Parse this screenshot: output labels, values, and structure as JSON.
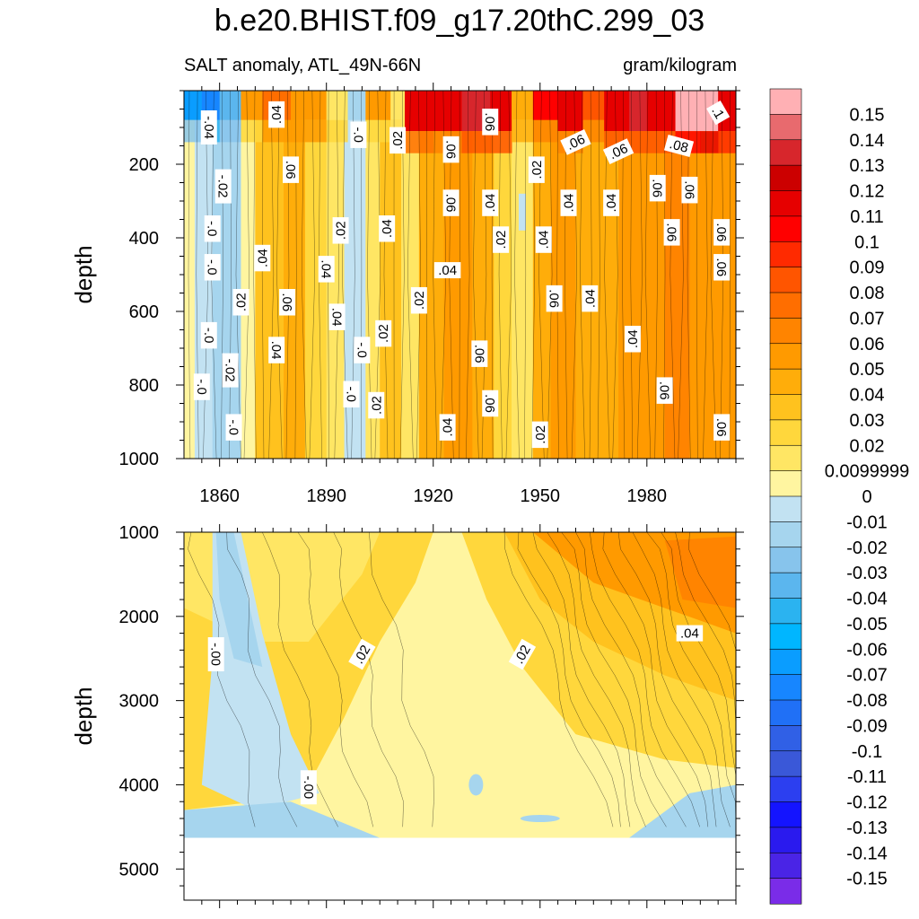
{
  "title": "b.e20.BHIST.f09_g17.20thC.299_03",
  "subtitle_left": "SALT anomaly, ATL_49N-66N",
  "subtitle_right": "gram/kilogram",
  "chart_data": [
    {
      "type": "heatmap",
      "panel": "upper",
      "xlabel": "",
      "ylabel": "depth",
      "xlim": [
        1850,
        2005
      ],
      "ylim": [
        1000,
        0
      ],
      "x_ticks": [
        1860,
        1890,
        1920,
        1950,
        1980
      ],
      "y_ticks": [
        200,
        400,
        600,
        800,
        1000
      ],
      "bands": [
        {
          "x0": 1850,
          "x1": 1853,
          "value": 0.005
        },
        {
          "x0": 1853,
          "x1": 1858,
          "value": -0.005
        },
        {
          "x0": 1858,
          "x1": 1866,
          "value": -0.02
        },
        {
          "x0": 1866,
          "x1": 1870,
          "value": 0.005
        },
        {
          "x0": 1870,
          "x1": 1878,
          "value": 0.035
        },
        {
          "x0": 1878,
          "x1": 1884,
          "value": 0.045
        },
        {
          "x0": 1884,
          "x1": 1890,
          "value": 0.03
        },
        {
          "x0": 1890,
          "x1": 1895,
          "value": 0.015
        },
        {
          "x0": 1895,
          "x1": 1901,
          "value": -0.005
        },
        {
          "x0": 1901,
          "x1": 1905,
          "value": 0.01
        },
        {
          "x0": 1905,
          "x1": 1911,
          "value": 0.035
        },
        {
          "x0": 1911,
          "x1": 1916,
          "value": 0.015
        },
        {
          "x0": 1916,
          "x1": 1923,
          "value": 0.045
        },
        {
          "x0": 1923,
          "x1": 1931,
          "value": 0.055
        },
        {
          "x0": 1931,
          "x1": 1937,
          "value": 0.045
        },
        {
          "x0": 1937,
          "x1": 1942,
          "value": 0.03
        },
        {
          "x0": 1942,
          "x1": 1948,
          "value": 0.015
        },
        {
          "x0": 1948,
          "x1": 1953,
          "value": 0.04
        },
        {
          "x0": 1953,
          "x1": 1960,
          "value": 0.055
        },
        {
          "x0": 1960,
          "x1": 1966,
          "value": 0.045
        },
        {
          "x0": 1966,
          "x1": 1972,
          "value": 0.04
        },
        {
          "x0": 1972,
          "x1": 1978,
          "value": 0.055
        },
        {
          "x0": 1978,
          "x1": 1985,
          "value": 0.06
        },
        {
          "x0": 1985,
          "x1": 1992,
          "value": 0.065
        },
        {
          "x0": 1992,
          "x1": 1999,
          "value": 0.06
        },
        {
          "x0": 1999,
          "x1": 2005,
          "value": 0.05
        }
      ],
      "surface_bands": [
        {
          "x0": 1850,
          "x1": 1855,
          "value": -0.06
        },
        {
          "x0": 1855,
          "x1": 1860,
          "value": -0.08
        },
        {
          "x0": 1860,
          "x1": 1866,
          "value": -0.03
        },
        {
          "x0": 1866,
          "x1": 1872,
          "value": 0.05
        },
        {
          "x0": 1872,
          "x1": 1880,
          "value": 0.07
        },
        {
          "x0": 1880,
          "x1": 1890,
          "value": 0.06
        },
        {
          "x0": 1890,
          "x1": 1896,
          "value": 0.02
        },
        {
          "x0": 1896,
          "x1": 1901,
          "value": -0.02
        },
        {
          "x0": 1901,
          "x1": 1908,
          "value": 0.06
        },
        {
          "x0": 1908,
          "x1": 1912,
          "value": 0.02
        },
        {
          "x0": 1912,
          "x1": 1920,
          "value": 0.11
        },
        {
          "x0": 1920,
          "x1": 1928,
          "value": 0.12
        },
        {
          "x0": 1928,
          "x1": 1936,
          "value": 0.13
        },
        {
          "x0": 1936,
          "x1": 1942,
          "value": 0.11
        },
        {
          "x0": 1942,
          "x1": 1948,
          "value": 0.04
        },
        {
          "x0": 1948,
          "x1": 1955,
          "value": 0.1
        },
        {
          "x0": 1955,
          "x1": 1962,
          "value": 0.12
        },
        {
          "x0": 1962,
          "x1": 1968,
          "value": 0.09
        },
        {
          "x0": 1968,
          "x1": 1975,
          "value": 0.11
        },
        {
          "x0": 1975,
          "x1": 1980,
          "value": 0.13
        },
        {
          "x0": 1980,
          "x1": 1988,
          "value": 0.12
        },
        {
          "x0": 1988,
          "x1": 1995,
          "value": 0.15
        },
        {
          "x0": 1995,
          "x1": 2000,
          "value": 0.16
        },
        {
          "x0": 2000,
          "x1": 2005,
          "value": 0.12
        }
      ],
      "contour_labels": [
        {
          "text": "-.04",
          "x": 1857,
          "y": 100,
          "rot": 90
        },
        {
          "text": ".04",
          "x": 1876,
          "y": 65,
          "rot": -90
        },
        {
          "text": "-.0",
          "x": 1899,
          "y": 120,
          "rot": 90
        },
        {
          "text": ".02",
          "x": 1910,
          "y": 135,
          "rot": -90
        },
        {
          "text": ".06",
          "x": 1936,
          "y": 85,
          "rot": 90
        },
        {
          "text": ".06",
          "x": 1925,
          "y": 160,
          "rot": 90
        },
        {
          "text": ".06",
          "x": 1960,
          "y": 140,
          "rot": -25
        },
        {
          "text": ".06",
          "x": 1972,
          "y": 165,
          "rot": -25
        },
        {
          "text": ".08",
          "x": 1989,
          "y": 150,
          "rot": 15
        },
        {
          "text": ".1",
          "x": 2000,
          "y": 60,
          "rot": 60
        },
        {
          "text": ".06",
          "x": 1880,
          "y": 215,
          "rot": 90
        },
        {
          "text": "-.02",
          "x": 1861,
          "y": 260,
          "rot": 90
        },
        {
          "text": ".02",
          "x": 1949,
          "y": 215,
          "rot": -90
        },
        {
          "text": ".06",
          "x": 1925,
          "y": 305,
          "rot": 90
        },
        {
          "text": ".04",
          "x": 1936,
          "y": 305,
          "rot": -90
        },
        {
          "text": ".04",
          "x": 1958,
          "y": 305,
          "rot": -90
        },
        {
          "text": ".04",
          "x": 1970,
          "y": 305,
          "rot": -90
        },
        {
          "text": ".06",
          "x": 1983,
          "y": 265,
          "rot": 90
        },
        {
          "text": ".06",
          "x": 1992,
          "y": 270,
          "rot": 90
        },
        {
          "text": "-.0",
          "x": 1858,
          "y": 375,
          "rot": 90
        },
        {
          "text": ".02",
          "x": 1894,
          "y": 380,
          "rot": -90
        },
        {
          "text": ".04",
          "x": 1907,
          "y": 375,
          "rot": -90
        },
        {
          "text": ".02",
          "x": 1939,
          "y": 405,
          "rot": -90
        },
        {
          "text": ".04",
          "x": 1951,
          "y": 405,
          "rot": -90
        },
        {
          "text": ".06",
          "x": 1987,
          "y": 385,
          "rot": 90
        },
        {
          "text": ".06",
          "x": 2001,
          "y": 385,
          "rot": 90
        },
        {
          "text": ".04",
          "x": 1872,
          "y": 455,
          "rot": -90
        },
        {
          "text": "-.0",
          "x": 1858,
          "y": 480,
          "rot": 90
        },
        {
          "text": ".04",
          "x": 1890,
          "y": 485,
          "rot": 90
        },
        {
          "text": ".04",
          "x": 1924,
          "y": 488,
          "rot": 0
        },
        {
          "text": ".06",
          "x": 2001,
          "y": 480,
          "rot": 90
        },
        {
          "text": ".02",
          "x": 1866,
          "y": 575,
          "rot": -90
        },
        {
          "text": ".06",
          "x": 1879,
          "y": 575,
          "rot": 90
        },
        {
          "text": ".02",
          "x": 1916,
          "y": 570,
          "rot": -90
        },
        {
          "text": ".06",
          "x": 1954,
          "y": 565,
          "rot": 90
        },
        {
          "text": ".04",
          "x": 1964,
          "y": 565,
          "rot": -90
        },
        {
          "text": ".04",
          "x": 1893,
          "y": 615,
          "rot": 90
        },
        {
          "text": ".02",
          "x": 1906,
          "y": 660,
          "rot": -90
        },
        {
          "text": "-.0",
          "x": 1857,
          "y": 665,
          "rot": 90
        },
        {
          "text": ".04",
          "x": 1876,
          "y": 705,
          "rot": 90
        },
        {
          "text": "-.0",
          "x": 1900,
          "y": 705,
          "rot": 90
        },
        {
          "text": ".06",
          "x": 1933,
          "y": 715,
          "rot": 90
        },
        {
          "text": ".04",
          "x": 1976,
          "y": 675,
          "rot": -90
        },
        {
          "text": "-.02",
          "x": 1863,
          "y": 760,
          "rot": 90
        },
        {
          "text": "-.0",
          "x": 1855,
          "y": 805,
          "rot": 90
        },
        {
          "text": "-.0",
          "x": 1897,
          "y": 825,
          "rot": 90
        },
        {
          "text": ".06",
          "x": 1985,
          "y": 815,
          "rot": 90
        },
        {
          "text": ".02",
          "x": 1904,
          "y": 855,
          "rot": -90
        },
        {
          "text": ".06",
          "x": 1936,
          "y": 850,
          "rot": 90
        },
        {
          "text": "-.0",
          "x": 1864,
          "y": 915,
          "rot": 90
        },
        {
          "text": ".04",
          "x": 1924,
          "y": 915,
          "rot": -90
        },
        {
          "text": ".02",
          "x": 1950,
          "y": 935,
          "rot": -90
        },
        {
          "text": ".06",
          "x": 2001,
          "y": 915,
          "rot": 90
        }
      ]
    },
    {
      "type": "heatmap",
      "panel": "lower",
      "xlabel": "",
      "ylabel": "depth",
      "xlim": [
        1850,
        2005
      ],
      "ylim": [
        5370,
        1000
      ],
      "x_ticks": [
        1860,
        1890,
        1920,
        1950,
        1980
      ],
      "y_ticks": [
        1000,
        2000,
        3000,
        4000,
        5000
      ],
      "data_bottom_depth": 4630,
      "regions": [
        {
          "name": "warm-right",
          "value": 0.05
        },
        {
          "name": "mid-right",
          "value": 0.035
        },
        {
          "name": "band-left",
          "value": 0.02
        },
        {
          "name": "cool-core",
          "value": -0.02
        },
        {
          "name": "cool-plume",
          "value": -0.005
        },
        {
          "name": "deep-pale",
          "value": 0.005
        },
        {
          "name": "bottom-cool",
          "value": -0.01
        }
      ],
      "contour_labels": [
        {
          "text": "-.00",
          "x": 1859,
          "y": 2450,
          "rot": 90
        },
        {
          "text": ".02",
          "x": 1900,
          "y": 2450,
          "rot": -60
        },
        {
          "text": ".02",
          "x": 1945,
          "y": 2450,
          "rot": -60
        },
        {
          "text": ".04",
          "x": 1992,
          "y": 2200,
          "rot": 0
        },
        {
          "text": "-.00",
          "x": 1885,
          "y": 4030,
          "rot": 90
        }
      ]
    }
  ],
  "colorbar": {
    "labels": [
      "0.15",
      "0.14",
      "0.13",
      "0.12",
      "0.11",
      "0.1",
      "0.09",
      "0.08",
      "0.07",
      "0.06",
      "0.05",
      "0.04",
      "0.03",
      "0.02",
      "0.0099999",
      "0",
      "-0.01",
      "-0.02",
      "-0.03",
      "-0.04",
      "-0.05",
      "-0.06",
      "-0.07",
      "-0.08",
      "-0.09",
      "-0.1",
      "-0.11",
      "-0.12",
      "-0.13",
      "-0.14",
      "-0.15"
    ],
    "colors": [
      "#FFB0B4",
      "#E86A6E",
      "#D7262C",
      "#CC0000",
      "#E60000",
      "#FF0000",
      "#FF2A00",
      "#FF5500",
      "#FF6E00",
      "#FF8400",
      "#FF9A00",
      "#FFAD0A",
      "#FFC21E",
      "#FFD73C",
      "#FFE664",
      "#FFF5A0",
      "#C2E2F2",
      "#A6D5EE",
      "#87C4EC",
      "#5BB6EE",
      "#2BB3F0",
      "#00B6FF",
      "#0A9DFF",
      "#1786FF",
      "#2070F6",
      "#3060E6",
      "#3A58D8",
      "#2C3FF0",
      "#1414FF",
      "#2A1AEE",
      "#4A24E6",
      "#7A2CE8"
    ]
  }
}
